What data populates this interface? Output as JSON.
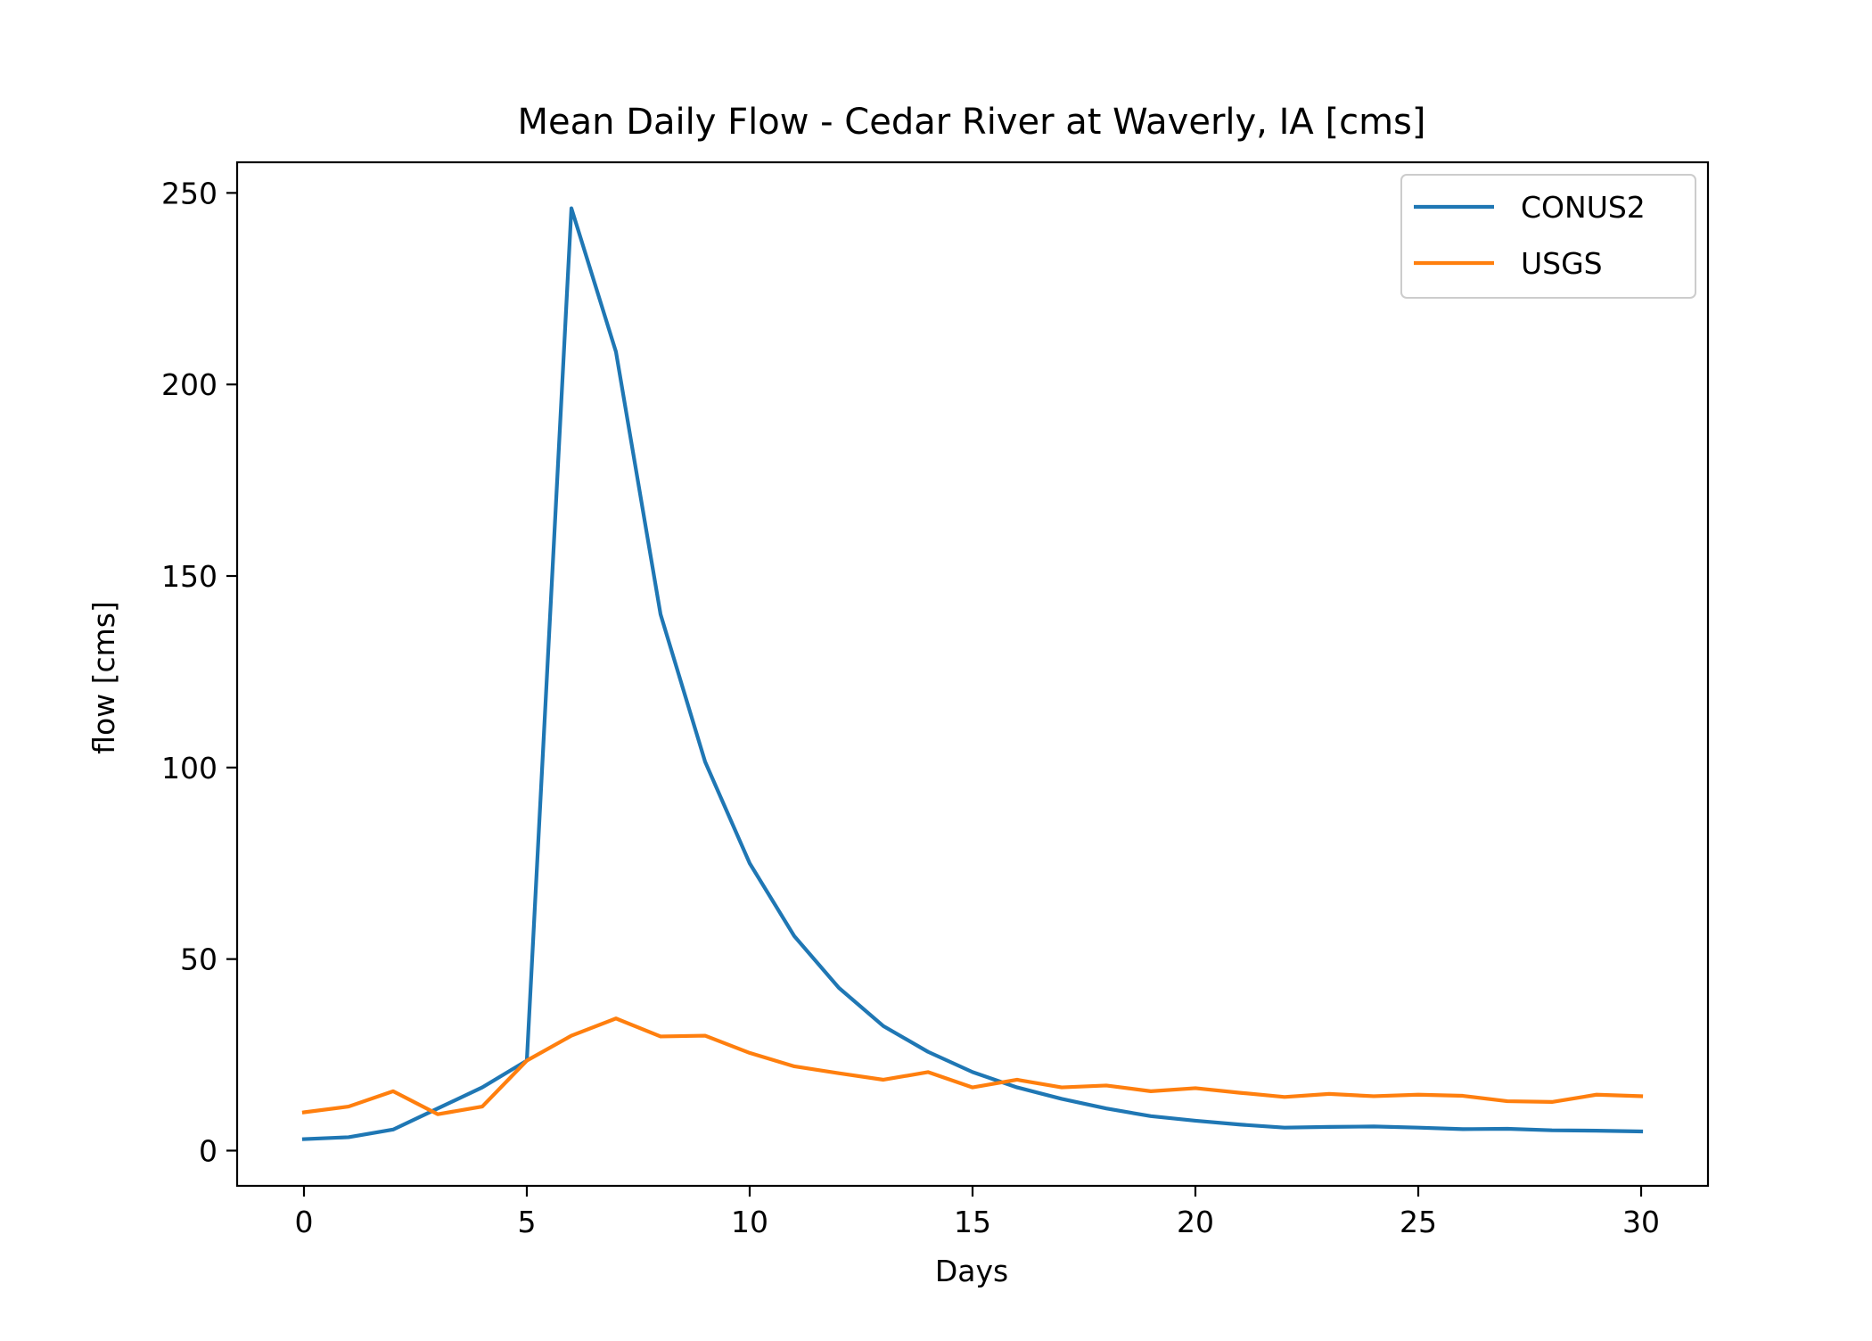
{
  "chart_data": {
    "type": "line",
    "title": "Mean Daily Flow - Cedar River at Waverly, IA [cms]",
    "xlabel": "Days",
    "ylabel": "flow [cms]",
    "xlim": [
      -1.5,
      31.5
    ],
    "ylim": [
      -9.2,
      258
    ],
    "xticks": [
      0,
      5,
      10,
      15,
      20,
      25,
      30
    ],
    "yticks": [
      0,
      50,
      100,
      150,
      200,
      250
    ],
    "grid": false,
    "legend_position": "top-right",
    "x": [
      0,
      1,
      2,
      3,
      4,
      5,
      6,
      7,
      8,
      9,
      10,
      11,
      12,
      13,
      14,
      15,
      16,
      17,
      18,
      19,
      20,
      21,
      22,
      23,
      24,
      25,
      26,
      27,
      28,
      29,
      30
    ],
    "series": [
      {
        "name": "CONUS2",
        "color": "#1f77b4",
        "values": [
          3,
          3.5,
          5.5,
          11,
          16.5,
          23.5,
          246,
          208.5,
          140,
          101.5,
          75,
          56,
          42.5,
          32.5,
          25.8,
          20.5,
          16.5,
          13.5,
          11,
          9,
          7.8,
          6.8,
          6,
          6.2,
          6.3,
          6,
          5.6,
          5.7,
          5.3,
          5.2,
          5
        ]
      },
      {
        "name": "USGS",
        "color": "#ff7f0e",
        "values": [
          10,
          11.5,
          15.5,
          9.5,
          11.5,
          23.5,
          30,
          34.5,
          29.8,
          30,
          25.5,
          22,
          20.2,
          18.5,
          20.5,
          16.5,
          18.5,
          16.5,
          17,
          15.5,
          16.3,
          15.1,
          14,
          14.8,
          14.2,
          14.6,
          14.3,
          12.9,
          12.7,
          14.6,
          14.2
        ]
      }
    ]
  }
}
